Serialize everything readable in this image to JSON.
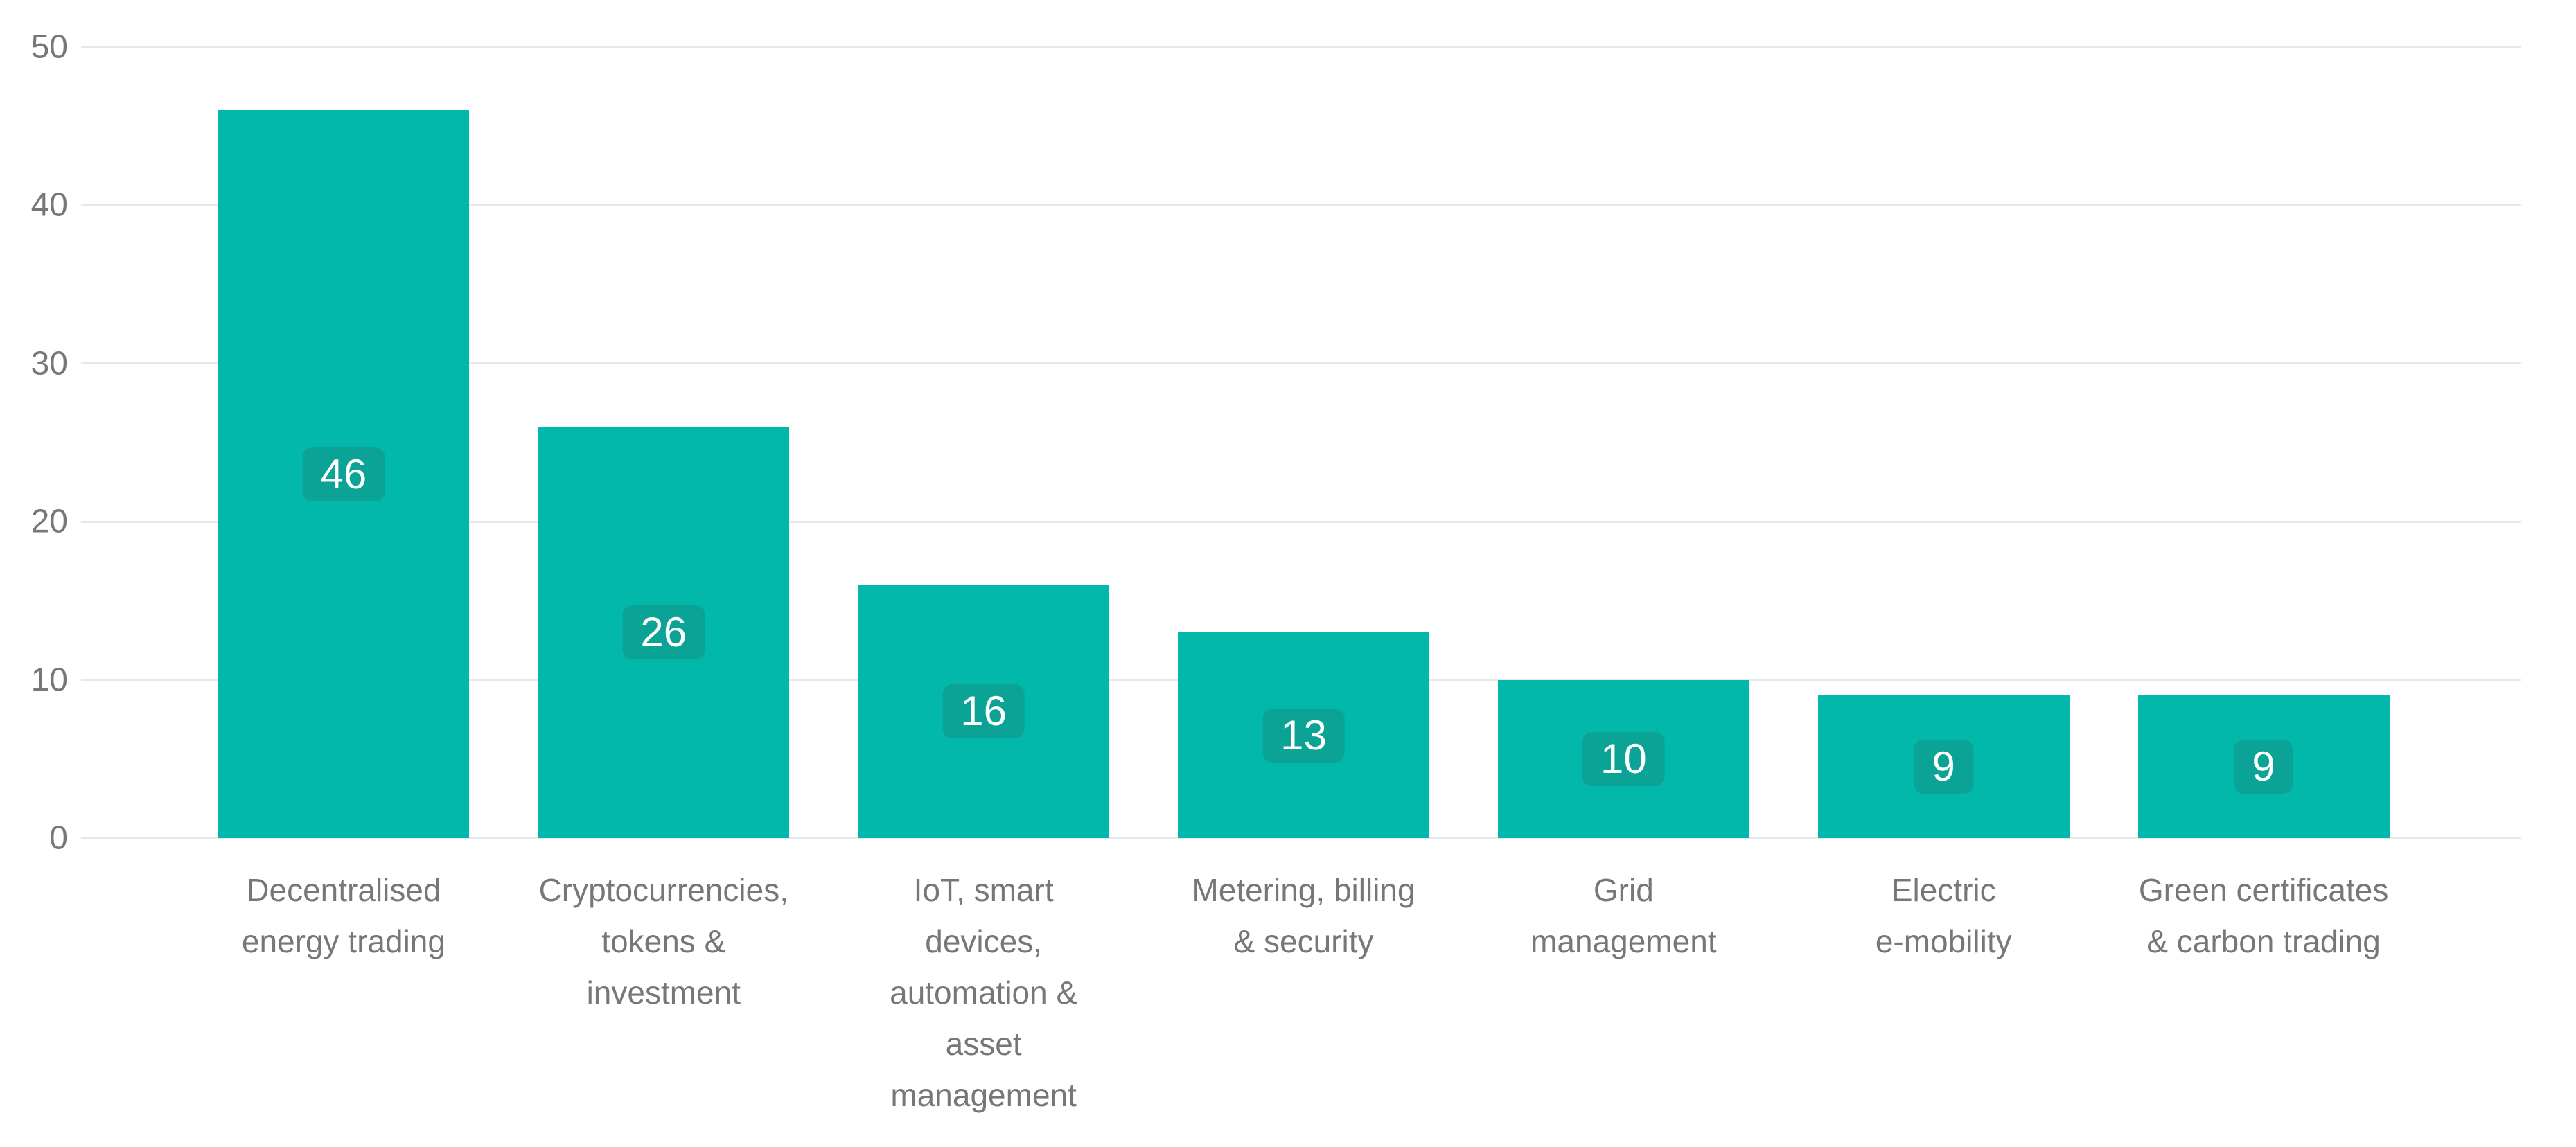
{
  "chart_data": {
    "type": "bar",
    "title": "",
    "xlabel": "",
    "ylabel": "",
    "categories": [
      "Decentralised energy trading",
      "Cryptocurrencies, tokens & investment",
      "IoT, smart devices, automation & asset management",
      "Metering, billing & security",
      "Grid management",
      "Electric e-mobility",
      "Green certificates & carbon trading"
    ],
    "category_lines": [
      [
        "Decentralised",
        "energy trading"
      ],
      [
        "Cryptocurrencies,",
        "tokens &",
        "investment"
      ],
      [
        "IoT, smart",
        "devices,",
        "automation &",
        "asset",
        "management"
      ],
      [
        "Metering, billing",
        "& security"
      ],
      [
        "Grid",
        "management"
      ],
      [
        "Electric",
        "e-mobility"
      ],
      [
        "Green certificates",
        "& carbon trading"
      ]
    ],
    "values": [
      46,
      26,
      16,
      13,
      10,
      9,
      9
    ],
    "data_labels": [
      "46",
      "26",
      "16",
      "13",
      "10",
      "9",
      "9"
    ],
    "ylim": [
      0,
      50
    ],
    "yticks": [
      0,
      10,
      20,
      30,
      40,
      50
    ],
    "grid": "horizontal",
    "legend": "none",
    "colors": {
      "bar": "#01B8AA",
      "label_chip_bg": "#0BA396",
      "label_text": "#FFFFFF",
      "axis_text": "#777777",
      "gridline": "#E8E8E8",
      "background": "#FFFFFF"
    }
  }
}
